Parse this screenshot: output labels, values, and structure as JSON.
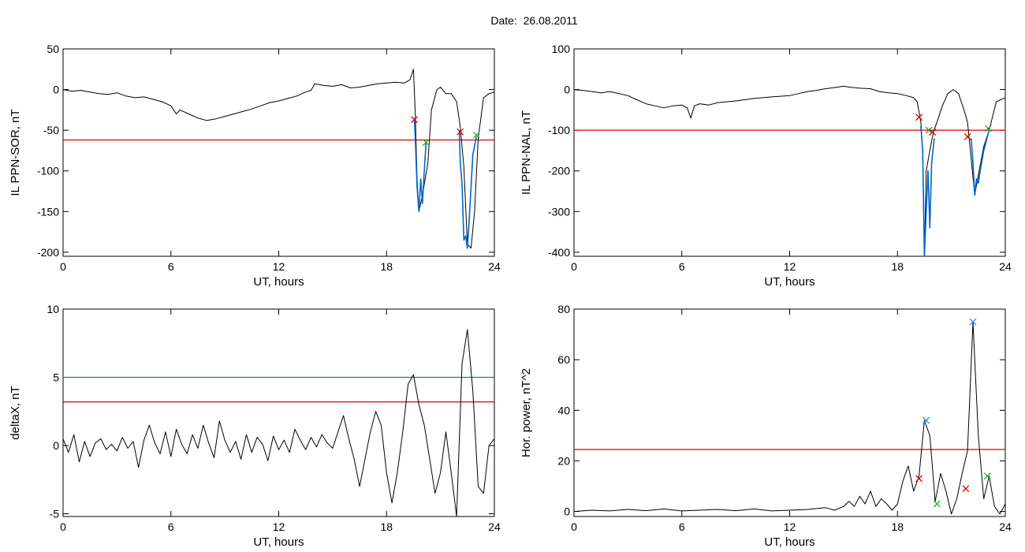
{
  "page_title": "Date:  26.08.2011",
  "chart_data": [
    {
      "type": "line",
      "xlabel": "UT, hours",
      "ylabel": "IL PPN-SOR, nT",
      "xlim": [
        0,
        24
      ],
      "ylim": [
        -205,
        50
      ],
      "xticks": [
        0,
        6,
        12,
        18,
        24
      ],
      "yticks": [
        50,
        0,
        -50,
        -100,
        -150,
        -200
      ],
      "colors": {
        "trace": "#000000",
        "highlight": "#0066cc",
        "threshold": "#dd0000"
      },
      "hlines": [
        {
          "y": -62,
          "color": "#dd0000"
        }
      ],
      "series": [
        {
          "color": "#000000",
          "x": [
            0,
            0.5,
            1,
            1.5,
            2,
            2.5,
            3,
            3.5,
            4,
            4.5,
            5,
            5.5,
            6,
            6.3,
            6.5,
            7,
            7.5,
            8,
            8.5,
            9,
            9.5,
            10,
            10.5,
            11,
            11.5,
            12,
            12.5,
            13,
            13.5,
            13.8,
            14,
            14.5,
            15,
            15.5,
            16,
            16.5,
            17,
            17.5,
            18,
            18.5,
            19,
            19.3,
            19.5,
            19.6,
            19.7,
            19.8,
            20,
            20.3,
            20.5,
            20.8,
            21,
            21.3,
            21.6,
            21.9,
            22.1,
            22.3,
            22.5,
            22.7,
            22.9,
            23.1,
            23.4,
            23.7,
            24
          ],
          "y": [
            0,
            -2,
            -1,
            -3,
            -5,
            -6,
            -4,
            -8,
            -10,
            -9,
            -12,
            -15,
            -20,
            -30,
            -25,
            -30,
            -35,
            -38,
            -36,
            -33,
            -30,
            -27,
            -24,
            -20,
            -16,
            -14,
            -11,
            -8,
            -3,
            -1,
            7,
            5,
            4,
            6,
            2,
            3,
            5,
            7,
            8,
            9,
            8,
            12,
            25,
            -30,
            -110,
            -150,
            -130,
            -90,
            -25,
            0,
            3,
            -5,
            -5,
            -15,
            -45,
            -95,
            -190,
            -195,
            -150,
            -60,
            -10,
            -5,
            -3
          ]
        },
        {
          "color": "#0066cc",
          "x": [
            19.55,
            19.6,
            19.7,
            19.8,
            19.9,
            20,
            20.1,
            20.2
          ],
          "y": [
            -35,
            -60,
            -120,
            -150,
            -110,
            -140,
            -100,
            -65
          ]
        },
        {
          "color": "#0066cc",
          "x": [
            22.05,
            22.1,
            22.2,
            22.3,
            22.4,
            22.5,
            22.6,
            22.8,
            23
          ],
          "y": [
            -50,
            -90,
            -115,
            -185,
            -180,
            -195,
            -160,
            -80,
            -58
          ]
        }
      ],
      "markers": [
        {
          "x": 19.55,
          "y": -37,
          "color": "#dd0000"
        },
        {
          "x": 20.2,
          "y": -65,
          "color": "#22aa22"
        },
        {
          "x": 22.1,
          "y": -52,
          "color": "#dd0000"
        },
        {
          "x": 23,
          "y": -56,
          "color": "#22aa22"
        }
      ]
    },
    {
      "type": "line",
      "xlabel": "UT, hours",
      "ylabel": "IL PPN-NAL, nT",
      "xlim": [
        0,
        24
      ],
      "ylim": [
        -410,
        100
      ],
      "xticks": [
        0,
        6,
        12,
        18,
        24
      ],
      "yticks": [
        100,
        0,
        -100,
        -200,
        -300,
        -400
      ],
      "colors": {
        "trace": "#000000",
        "highlight": "#0066cc",
        "threshold": "#dd0000"
      },
      "hlines": [
        {
          "y": -100,
          "color": "#dd0000"
        }
      ],
      "series": [
        {
          "color": "#000000",
          "x": [
            0,
            0.5,
            1,
            1.5,
            2,
            2.5,
            3,
            3.5,
            4,
            4.5,
            5,
            5.5,
            6,
            6.3,
            6.5,
            6.7,
            7,
            7.5,
            8,
            9,
            10,
            11,
            12,
            12.5,
            13,
            13.5,
            14,
            14.5,
            15,
            15.5,
            16,
            16.5,
            17,
            17.5,
            18,
            18.5,
            18.9,
            19.1,
            19.3,
            19.4,
            19.5,
            19.6,
            19.8,
            20,
            20.2,
            20.5,
            20.8,
            21.1,
            21.4,
            21.7,
            21.9,
            22.1,
            22.3,
            22.5,
            22.8,
            23.1,
            23.5,
            24
          ],
          "y": [
            0,
            -2,
            -5,
            -8,
            -5,
            -10,
            -15,
            -25,
            -35,
            -40,
            -45,
            -40,
            -38,
            -45,
            -70,
            -40,
            -35,
            -38,
            -32,
            -28,
            -22,
            -18,
            -15,
            -10,
            -5,
            -2,
            2,
            5,
            8,
            5,
            3,
            2,
            -5,
            -8,
            -10,
            -15,
            -20,
            -30,
            -80,
            -150,
            -410,
            -200,
            -150,
            -105,
            -80,
            -40,
            -10,
            0,
            -10,
            -50,
            -80,
            -170,
            -260,
            -210,
            -140,
            -100,
            -30,
            -20
          ]
        },
        {
          "color": "#0066cc",
          "x": [
            19.3,
            19.4,
            19.5,
            19.6,
            19.7,
            19.8,
            19.9,
            20.05
          ],
          "y": [
            -90,
            -150,
            -410,
            -300,
            -200,
            -340,
            -180,
            -120
          ]
        },
        {
          "color": "#0066cc",
          "x": [
            22.1,
            22.2,
            22.3,
            22.4,
            22.5,
            22.6,
            22.8,
            23.1
          ],
          "y": [
            -120,
            -180,
            -260,
            -220,
            -230,
            -200,
            -150,
            -100
          ]
        }
      ],
      "markers": [
        {
          "x": 19.2,
          "y": -68,
          "color": "#dd0000"
        },
        {
          "x": 19.75,
          "y": -100,
          "color": "#22aa22"
        },
        {
          "x": 19.95,
          "y": -105,
          "color": "#dd0000"
        },
        {
          "x": 21.9,
          "y": -116,
          "color": "#dd0000"
        },
        {
          "x": 23.05,
          "y": -96,
          "color": "#22aa22"
        }
      ]
    },
    {
      "type": "line",
      "xlabel": "UT, hours",
      "ylabel": "deltaX, nT",
      "xlim": [
        0,
        24
      ],
      "ylim": [
        -5.2,
        10
      ],
      "xticks": [
        0,
        6,
        12,
        18,
        24
      ],
      "yticks": [
        10,
        5,
        0,
        -5
      ],
      "colors": {
        "trace": "#000000",
        "upper_threshold": "#008b8b",
        "threshold": "#dd0000"
      },
      "hlines": [
        {
          "y": 5,
          "color": "#008b8b"
        },
        {
          "y": 3.2,
          "color": "#dd0000"
        }
      ],
      "series": [
        {
          "color": "#000000",
          "x": [
            0,
            0.3,
            0.6,
            0.9,
            1.2,
            1.5,
            1.8,
            2.1,
            2.4,
            2.7,
            3,
            3.3,
            3.6,
            3.9,
            4.2,
            4.5,
            4.8,
            5.1,
            5.4,
            5.7,
            6,
            6.3,
            6.6,
            6.9,
            7.2,
            7.5,
            7.8,
            8.1,
            8.4,
            8.7,
            9,
            9.3,
            9.6,
            9.9,
            10.2,
            10.5,
            10.8,
            11.1,
            11.4,
            11.7,
            12,
            12.3,
            12.6,
            12.9,
            13.2,
            13.5,
            13.8,
            14.1,
            14.4,
            14.7,
            15,
            15.3,
            15.6,
            15.9,
            16.2,
            16.5,
            16.8,
            17.1,
            17.4,
            17.7,
            18,
            18.3,
            18.6,
            18.9,
            19.2,
            19.5,
            19.8,
            20.1,
            20.4,
            20.7,
            21,
            21.3,
            21.6,
            21.9,
            22.2,
            22.5,
            22.8,
            23.1,
            23.4,
            23.7,
            24
          ],
          "y": [
            0.5,
            -0.5,
            0.8,
            -1.2,
            0.3,
            -0.8,
            0.2,
            0.5,
            -0.3,
            0.1,
            -0.4,
            0.6,
            -0.2,
            0.3,
            -1.6,
            0.4,
            1.5,
            0.2,
            -0.6,
            1.0,
            -0.8,
            1.2,
            0.1,
            -0.6,
            0.8,
            -0.2,
            1.5,
            0.2,
            -0.9,
            1.8,
            0.4,
            -0.5,
            0.3,
            -1.0,
            0.8,
            -0.5,
            0.6,
            0.1,
            -1.1,
            0.7,
            -0.3,
            0.4,
            -0.5,
            1.2,
            0.4,
            -0.3,
            0.6,
            -0.1,
            0.8,
            0.2,
            -0.2,
            1.0,
            2.2,
            0.5,
            -1.0,
            -3.0,
            -1.0,
            1.0,
            2.5,
            1.5,
            -2.0,
            -4.2,
            -2.0,
            1.0,
            4.5,
            5.2,
            3.0,
            1.5,
            -1.0,
            -3.5,
            -2.0,
            1.0,
            -2.0,
            -5.2,
            6.0,
            8.5,
            4.0,
            -3.0,
            -3.5,
            0.0,
            0.5
          ]
        }
      ],
      "markers": []
    },
    {
      "type": "line",
      "xlabel": "UT, hours",
      "ylabel": "Hor. power, nT^2",
      "xlim": [
        0,
        24
      ],
      "ylim": [
        -2,
        80
      ],
      "xticks": [
        0,
        6,
        12,
        18,
        24
      ],
      "yticks": [
        80,
        60,
        40,
        20,
        0
      ],
      "colors": {
        "trace": "#000000",
        "threshold": "#dd0000",
        "peak_marker": "#1e90ff"
      },
      "hlines": [
        {
          "y": 24.5,
          "color": "#dd0000"
        }
      ],
      "series": [
        {
          "color": "#000000",
          "x": [
            0,
            1,
            2,
            3,
            4,
            5,
            6,
            7,
            8,
            9,
            10,
            11,
            12,
            13,
            14,
            14.5,
            15,
            15.3,
            15.6,
            15.9,
            16.2,
            16.5,
            16.8,
            17.1,
            17.4,
            17.7,
            18,
            18.3,
            18.6,
            18.9,
            19.2,
            19.5,
            19.8,
            20.1,
            20.4,
            20.7,
            21,
            21.3,
            21.6,
            21.9,
            22.2,
            22.5,
            22.8,
            23.1,
            23.4,
            23.7,
            24
          ],
          "y": [
            0,
            0.5,
            0.2,
            0.8,
            0.3,
            1.0,
            0.2,
            0.5,
            0.8,
            0.3,
            1.0,
            0.2,
            0.5,
            0.8,
            1.5,
            0.5,
            2.0,
            4.0,
            2.0,
            6.0,
            3.0,
            8.0,
            2.0,
            5.0,
            3.0,
            0.5,
            3.0,
            12.0,
            18.0,
            8.0,
            14.0,
            36.0,
            30.0,
            4.0,
            15.0,
            8.0,
            -1.0,
            5.0,
            15.0,
            24.0,
            75.0,
            30.0,
            5.0,
            14.0,
            2.0,
            -1.0,
            3.0
          ]
        }
      ],
      "markers": [
        {
          "x": 19.2,
          "y": 13,
          "color": "#dd0000"
        },
        {
          "x": 19.6,
          "y": 36,
          "color": "#1e90ff"
        },
        {
          "x": 20.2,
          "y": 3,
          "color": "#22aa22"
        },
        {
          "x": 21.8,
          "y": 9,
          "color": "#dd0000"
        },
        {
          "x": 22.2,
          "y": 75,
          "color": "#1e90ff"
        },
        {
          "x": 23.0,
          "y": 14,
          "color": "#22aa22"
        }
      ]
    }
  ]
}
